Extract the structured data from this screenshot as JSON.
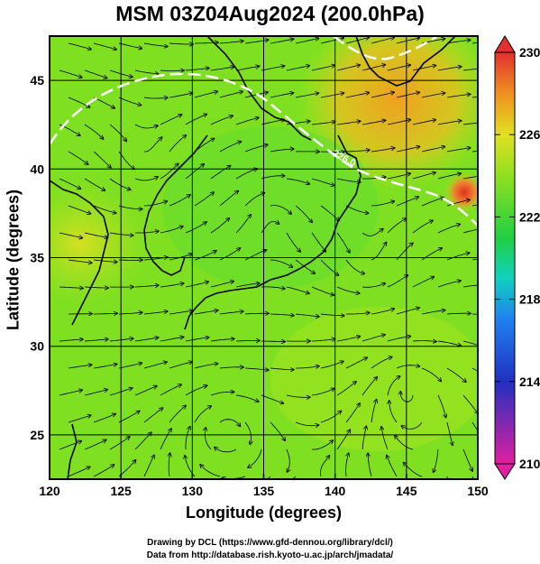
{
  "title": "MSM 03Z04Aug2024 (200.0hPa)",
  "xlabel": "Longitude (degrees)",
  "ylabel": "Latitude  (degrees)",
  "credits": {
    "line1": "Drawing by DCL (https://www.gfd-dennou.org/library/dcl/)",
    "line2": "Data from http://database.rish.kyoto-u.ac.jp/arch/jmadata/"
  },
  "chart_data": {
    "type": "heatmap",
    "field": "temperature shading with wind streamlines",
    "xlim": [
      120,
      150
    ],
    "ylim": [
      22.5,
      47.5
    ],
    "xticks": [
      120,
      125,
      130,
      135,
      140,
      145,
      150
    ],
    "yticks": [
      25,
      30,
      35,
      40,
      45
    ],
    "grid": true,
    "contour_label": "226.0",
    "colorbar": {
      "min": 210,
      "max": 230,
      "ticks": [
        230,
        226,
        222,
        218,
        214,
        210
      ],
      "position": "right",
      "extend": "both"
    },
    "colors": {
      "low": "#e020a0",
      "mid_low": "#2050e0",
      "mid": "#20d040",
      "mid_high": "#c0f020",
      "high": "#f08010",
      "max": "#e03030",
      "contour": "#ffffff"
    }
  }
}
